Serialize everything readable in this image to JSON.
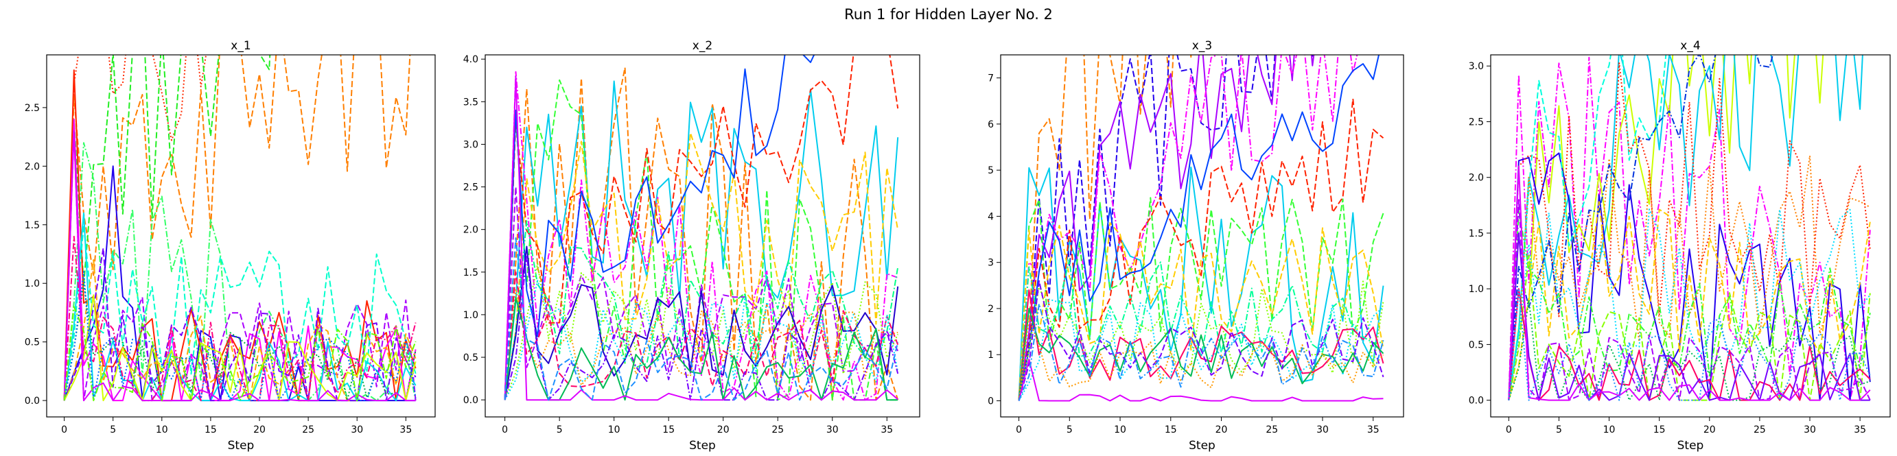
{
  "figure": {
    "title": "Run 1 for Hidden Layer No. 2"
  },
  "chart_data": [
    {
      "type": "line",
      "title": "x_1",
      "xlabel": "Step",
      "ylabel": "",
      "xlim": [
        -1.8,
        38
      ],
      "ylim": [
        -0.14,
        2.95
      ],
      "xticks": [
        0,
        5,
        10,
        15,
        20,
        25,
        30,
        35
      ],
      "yticks": [
        0.0,
        0.5,
        1.0,
        1.5,
        2.0,
        2.5
      ],
      "ytick_format": "0.0",
      "grid": false,
      "legend": "none",
      "n_steps": 37,
      "series": [
        {
          "color": "#ff2a00",
          "dash": "dotted",
          "peak": 2.7,
          "level": 2.05,
          "peak_step": 1,
          "trend": 0.012
        },
        {
          "color": "#ff7f00",
          "dash": "dashed",
          "peak": 2.6,
          "level": 1.55,
          "peak_step": 1,
          "trend": 0.004
        },
        {
          "color": "#22ee22",
          "dash": "dashed",
          "peak": 2.4,
          "level": 1.7,
          "peak_step": 1,
          "trend": 0.01
        },
        {
          "color": "#33ff66",
          "dash": "dashdot",
          "peak": 2.2,
          "level": 1.45,
          "peak_step": 2,
          "trend": -0.005
        },
        {
          "color": "#2200ee",
          "dash": "solid",
          "peak": 2.0,
          "level": 0.75,
          "peak_step": 5,
          "trend": -0.004
        },
        {
          "color": "#ff2200",
          "dash": "solid",
          "peak": 2.82,
          "level": 0.55,
          "peak_step": 1,
          "trend": 0.0
        },
        {
          "color": "#ff00ff",
          "dash": "solid",
          "peak": 2.4,
          "level": 0.35,
          "peak_step": 1,
          "trend": 0.0
        },
        {
          "color": "#aa00ff",
          "dash": "dashed",
          "peak": 2.3,
          "level": 0.5,
          "peak_step": 1,
          "trend": 0.0
        },
        {
          "color": "#00ffcc",
          "dash": "dashed",
          "peak": 1.5,
          "level": 0.75,
          "peak_step": 2,
          "trend": 0.0
        },
        {
          "color": "#ffaa00",
          "dash": "dashed",
          "peak": 1.2,
          "level": 0.4,
          "peak_step": 3,
          "trend": 0.0
        },
        {
          "color": "#00ddee",
          "dash": "solid",
          "peak": 1.6,
          "level": 0.3,
          "peak_step": 2,
          "trend": 0.0
        },
        {
          "color": "#7700ff",
          "dash": "dashed",
          "peak": 1.3,
          "level": 0.45,
          "peak_step": 4,
          "trend": 0.0
        },
        {
          "color": "#00aa44",
          "dash": "dotted",
          "peak": 1.0,
          "level": 0.3,
          "peak_step": 2,
          "trend": 0.0
        },
        {
          "color": "#ff0080",
          "dash": "dashdot",
          "peak": 1.4,
          "level": 0.4,
          "peak_step": 1,
          "trend": 0.0
        },
        {
          "color": "#d4ff00",
          "dash": "solid",
          "peak": 0.9,
          "level": 0.25,
          "peak_step": 3,
          "trend": 0.0
        },
        {
          "color": "#0066ff",
          "dash": "dotted",
          "peak": 1.1,
          "level": 0.3,
          "peak_step": 2,
          "trend": 0.0
        },
        {
          "color": "#dd00ff",
          "dash": "solid",
          "peak": 2.3,
          "level": 0.02,
          "peak_step": 1,
          "trend": 0.0
        },
        {
          "color": "#66ff00",
          "dash": "dashdot",
          "peak": 0.8,
          "level": 0.35,
          "peak_step": 1,
          "trend": 0.0
        }
      ]
    },
    {
      "type": "line",
      "title": "x_2",
      "xlabel": "Step",
      "ylabel": "",
      "xlim": [
        -1.8,
        38
      ],
      "ylim": [
        -0.2,
        4.05
      ],
      "xticks": [
        0,
        5,
        10,
        15,
        20,
        25,
        30,
        35
      ],
      "yticks": [
        0.0,
        0.5,
        1.0,
        1.5,
        2.0,
        2.5,
        3.0,
        3.5,
        4.0
      ],
      "ytick_format": "0.0",
      "grid": false,
      "legend": "none",
      "n_steps": 37,
      "series": [
        {
          "color": "#ff7f00",
          "dash": "dashed",
          "peak": 3.65,
          "level": 2.85,
          "peak_step": 2,
          "trend": -0.005
        },
        {
          "color": "#00ccee",
          "dash": "solid",
          "peak": 3.2,
          "level": 2.35,
          "peak_step": 2,
          "trend": 0.0
        },
        {
          "color": "#33ff33",
          "dash": "dashed",
          "peak": 3.3,
          "level": 2.55,
          "peak_step": 1,
          "trend": -0.006
        },
        {
          "color": "#ff00ff",
          "dash": "dashdot",
          "peak": 3.85,
          "level": 1.9,
          "peak_step": 1,
          "trend": -0.004
        },
        {
          "color": "#ffcc00",
          "dash": "dashed",
          "peak": 2.6,
          "level": 2.0,
          "peak_step": 2,
          "trend": 0.0
        },
        {
          "color": "#ff2200",
          "dash": "dashed",
          "peak": 3.3,
          "level": 1.2,
          "peak_step": 1,
          "trend": 0.008
        },
        {
          "color": "#0044ff",
          "dash": "solid",
          "peak": 3.4,
          "level": 1.1,
          "peak_step": 1,
          "trend": 0.01
        },
        {
          "color": "#aa00ff",
          "dash": "dashed",
          "peak": 2.5,
          "level": 0.9,
          "peak_step": 1,
          "trend": 0.0
        },
        {
          "color": "#00ff88",
          "dash": "dashdot",
          "peak": 2.1,
          "level": 1.1,
          "peak_step": 2,
          "trend": 0.0
        },
        {
          "color": "#88ff00",
          "dash": "dotted",
          "peak": 1.6,
          "level": 0.9,
          "peak_step": 3,
          "trend": 0.0
        },
        {
          "color": "#2200cc",
          "dash": "solid",
          "peak": 1.8,
          "level": 0.8,
          "peak_step": 2,
          "trend": 0.0
        },
        {
          "color": "#ff0066",
          "dash": "dashed",
          "peak": 1.5,
          "level": 0.6,
          "peak_step": 1,
          "trend": 0.0
        },
        {
          "color": "#00ddff",
          "dash": "dotted",
          "peak": 1.4,
          "level": 0.7,
          "peak_step": 3,
          "trend": 0.0
        },
        {
          "color": "#ff9900",
          "dash": "dotted",
          "peak": 1.3,
          "level": 0.6,
          "peak_step": 1,
          "trend": 0.0
        },
        {
          "color": "#7700ff",
          "dash": "dashdot",
          "peak": 1.7,
          "level": 0.5,
          "peak_step": 2,
          "trend": 0.0
        },
        {
          "color": "#00bb55",
          "dash": "solid",
          "peak": 1.2,
          "level": 0.5,
          "peak_step": 1,
          "trend": 0.0
        },
        {
          "color": "#dd00ff",
          "dash": "solid",
          "peak": 3.8,
          "level": 0.02,
          "peak_step": 1,
          "trend": 0.0
        },
        {
          "color": "#1e90ff",
          "dash": "dashed",
          "peak": 1.9,
          "level": 0.4,
          "peak_step": 1,
          "trend": 0.0
        }
      ]
    },
    {
      "type": "line",
      "title": "x_3",
      "xlabel": "Step",
      "ylabel": "",
      "xlim": [
        -1.8,
        38
      ],
      "ylim": [
        -0.35,
        7.5
      ],
      "xticks": [
        0,
        5,
        10,
        15,
        20,
        25,
        30,
        35
      ],
      "yticks": [
        0,
        1,
        2,
        3,
        4,
        5,
        6,
        7
      ],
      "ytick_format": "0",
      "grid": false,
      "legend": "none",
      "n_steps": 37,
      "series": [
        {
          "color": "#ff7f00",
          "dash": "dashed",
          "peak": 5.8,
          "level": 5.9,
          "peak_step": 2,
          "trend": 0.02
        },
        {
          "color": "#00ccee",
          "dash": "solid",
          "peak": 5.05,
          "level": 4.0,
          "peak_step": 1,
          "trend": -0.005
        },
        {
          "color": "#2200ee",
          "dash": "dashed",
          "peak": 4.4,
          "level": 3.4,
          "peak_step": 2,
          "trend": 0.02
        },
        {
          "color": "#aa00ff",
          "dash": "solid",
          "peak": 3.6,
          "level": 2.9,
          "peak_step": 2,
          "trend": 0.02
        },
        {
          "color": "#ff00ff",
          "dash": "dashdot",
          "peak": 3.0,
          "level": 2.9,
          "peak_step": 1,
          "trend": 0.015
        },
        {
          "color": "#33ff33",
          "dash": "dashed",
          "peak": 3.8,
          "level": 2.8,
          "peak_step": 1,
          "trend": 0.0
        },
        {
          "color": "#ff2200",
          "dash": "dashed",
          "peak": 3.3,
          "level": 2.2,
          "peak_step": 2,
          "trend": 0.01
        },
        {
          "color": "#ffcc00",
          "dash": "dashed",
          "peak": 3.7,
          "level": 2.5,
          "peak_step": 1,
          "trend": 0.0
        },
        {
          "color": "#0044ff",
          "dash": "solid",
          "peak": 2.8,
          "level": 2.2,
          "peak_step": 2,
          "trend": 0.015
        },
        {
          "color": "#00ff99",
          "dash": "dashdot",
          "peak": 2.9,
          "level": 2.0,
          "peak_step": 1,
          "trend": 0.0
        },
        {
          "color": "#88ff00",
          "dash": "dotted",
          "peak": 2.5,
          "level": 1.6,
          "peak_step": 2,
          "trend": 0.0
        },
        {
          "color": "#ff0066",
          "dash": "solid",
          "peak": 2.4,
          "level": 1.0,
          "peak_step": 1,
          "trend": 0.0
        },
        {
          "color": "#00ddff",
          "dash": "dotted",
          "peak": 2.2,
          "level": 1.3,
          "peak_step": 3,
          "trend": 0.0
        },
        {
          "color": "#00bb55",
          "dash": "solid",
          "peak": 2.0,
          "level": 1.0,
          "peak_step": 1,
          "trend": 0.0
        },
        {
          "color": "#7700ff",
          "dash": "dashed",
          "peak": 2.6,
          "level": 1.1,
          "peak_step": 2,
          "trend": 0.0
        },
        {
          "color": "#ff9900",
          "dash": "dotted",
          "peak": 1.8,
          "level": 0.8,
          "peak_step": 1,
          "trend": 0.0
        },
        {
          "color": "#dd00ff",
          "dash": "solid",
          "peak": 0.9,
          "level": 0.02,
          "peak_step": 1,
          "trend": 0.0
        },
        {
          "color": "#1e90ff",
          "dash": "dashdot",
          "peak": 2.1,
          "level": 0.9,
          "peak_step": 2,
          "trend": 0.0
        }
      ]
    },
    {
      "type": "line",
      "title": "x_4",
      "xlabel": "Step",
      "ylabel": "",
      "xlim": [
        -1.8,
        38
      ],
      "ylim": [
        -0.15,
        3.1
      ],
      "xticks": [
        0,
        5,
        10,
        15,
        20,
        25,
        30,
        35
      ],
      "yticks": [
        0.0,
        0.5,
        1.0,
        1.5,
        2.0,
        2.5,
        3.0
      ],
      "ytick_format": "0.0",
      "grid": false,
      "legend": "none",
      "n_steps": 37,
      "series": [
        {
          "color": "#ff00ff",
          "dash": "dashdot",
          "peak": 2.92,
          "level": 2.2,
          "peak_step": 1,
          "trend": -0.004
        },
        {
          "color": "#ccff00",
          "dash": "solid",
          "peak": 2.5,
          "level": 2.2,
          "peak_step": 3,
          "trend": 0.005
        },
        {
          "color": "#00ccee",
          "dash": "solid",
          "peak": 2.0,
          "level": 1.75,
          "peak_step": 2,
          "trend": 0.005
        },
        {
          "color": "#2200ee",
          "dash": "solid",
          "peak": 2.15,
          "level": 1.55,
          "peak_step": 1,
          "trend": -0.004
        },
        {
          "color": "#00ffdd",
          "dash": "dashed",
          "peak": 1.9,
          "level": 1.6,
          "peak_step": 2,
          "trend": 0.01
        },
        {
          "color": "#ff7f00",
          "dash": "dotted",
          "peak": 2.0,
          "level": 1.4,
          "peak_step": 2,
          "trend": 0.0
        },
        {
          "color": "#ff2200",
          "dash": "dotted",
          "peak": 2.1,
          "level": 1.9,
          "peak_step": 1,
          "trend": 0.0
        },
        {
          "color": "#ffcc00",
          "dash": "dashed",
          "peak": 1.6,
          "level": 1.1,
          "peak_step": 3,
          "trend": 0.0
        },
        {
          "color": "#00ddff",
          "dash": "dotted",
          "peak": 1.4,
          "level": 1.05,
          "peak_step": 2,
          "trend": 0.0
        },
        {
          "color": "#0033dd",
          "dash": "dashdot",
          "peak": 1.2,
          "level": 0.75,
          "peak_step": 1,
          "trend": 0.01
        },
        {
          "color": "#33ff33",
          "dash": "dashdot",
          "peak": 1.7,
          "level": 0.7,
          "peak_step": 1,
          "trend": 0.0
        },
        {
          "color": "#88ff00",
          "dash": "dashed",
          "peak": 1.3,
          "level": 0.55,
          "peak_step": 2,
          "trend": 0.0
        },
        {
          "color": "#aa00ff",
          "dash": "dashed",
          "peak": 1.8,
          "level": 0.3,
          "peak_step": 1,
          "trend": 0.0
        },
        {
          "color": "#ff0066",
          "dash": "solid",
          "peak": 1.0,
          "level": 0.25,
          "peak_step": 1,
          "trend": 0.0
        },
        {
          "color": "#00bb55",
          "dash": "dotted",
          "peak": 0.9,
          "level": 0.3,
          "peak_step": 2,
          "trend": 0.0
        },
        {
          "color": "#7700ff",
          "dash": "solid",
          "peak": 1.5,
          "level": 0.2,
          "peak_step": 1,
          "trend": 0.0
        },
        {
          "color": "#dd00ff",
          "dash": "solid",
          "peak": 2.1,
          "level": 0.02,
          "peak_step": 1,
          "trend": 0.0
        },
        {
          "color": "#1e90ff",
          "dash": "dotted",
          "peak": 1.0,
          "level": 0.4,
          "peak_step": 1,
          "trend": 0.0
        }
      ]
    }
  ]
}
